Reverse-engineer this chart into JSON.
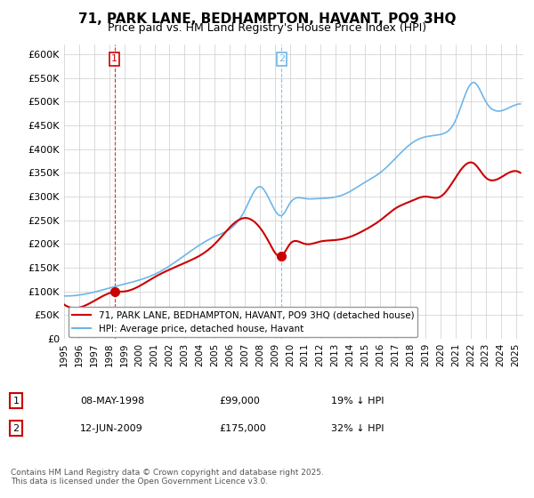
{
  "title": "71, PARK LANE, BEDHAMPTON, HAVANT, PO9 3HQ",
  "subtitle": "Price paid vs. HM Land Registry's House Price Index (HPI)",
  "hpi_label": "HPI: Average price, detached house, Havant",
  "property_label": "71, PARK LANE, BEDHAMPTON, HAVANT, PO9 3HQ (detached house)",
  "hpi_color": "#6db6e8",
  "property_color": "#cc0000",
  "marker_color": "#cc0000",
  "xlim": [
    1995.0,
    2025.5
  ],
  "ylim": [
    0,
    620000
  ],
  "yticks": [
    0,
    50000,
    100000,
    150000,
    200000,
    250000,
    300000,
    350000,
    400000,
    450000,
    500000,
    550000,
    600000
  ],
  "ytick_labels": [
    "£0",
    "£50K",
    "£100K",
    "£150K",
    "£200K",
    "£250K",
    "£300K",
    "£350K",
    "£400K",
    "£450K",
    "£500K",
    "£550K",
    "£600K"
  ],
  "xticks": [
    1995,
    1996,
    1997,
    1998,
    1999,
    2000,
    2001,
    2002,
    2003,
    2004,
    2005,
    2006,
    2007,
    2008,
    2009,
    2010,
    2011,
    2012,
    2013,
    2014,
    2015,
    2016,
    2017,
    2018,
    2019,
    2020,
    2021,
    2022,
    2023,
    2024,
    2025
  ],
  "sale1_x": 1998.35,
  "sale1_y": 99000,
  "sale1_label": "1",
  "sale1_date": "08-MAY-1998",
  "sale1_price": "£99,000",
  "sale1_hpi": "19% ↓ HPI",
  "sale2_x": 2009.45,
  "sale2_y": 175000,
  "sale2_label": "2",
  "sale2_date": "12-JUN-2009",
  "sale2_price": "£175,000",
  "sale2_hpi": "32% ↓ HPI",
  "footer": "Contains HM Land Registry data © Crown copyright and database right 2025.\nThis data is licensed under the Open Government Licence v3.0.",
  "background_color": "#ffffff",
  "grid_color": "#cccccc"
}
